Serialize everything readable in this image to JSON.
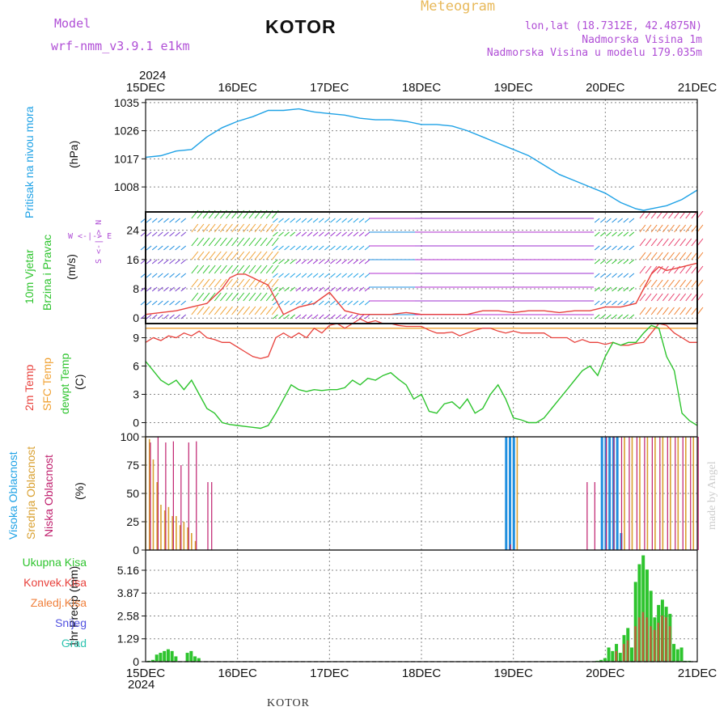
{
  "header": {
    "model_label": "Model",
    "model_name": "wrf-nmm_v3.9.1 e1km",
    "title": "KOTOR",
    "meteogram_label": "Meteogram",
    "lonlat": "lon,lat (18.7312E, 42.4875N)",
    "altitude": "Nadmorska Visina 1m",
    "model_altitude": "Nadmorska Visina u modelu 179.035m",
    "year": "2024",
    "footer_title": "KOTOR",
    "credit": "made by Angel"
  },
  "x_axis": {
    "ticks": [
      "15DEC",
      "16DEC",
      "17DEC",
      "18DEC",
      "19DEC",
      "20DEC",
      "21DEC"
    ]
  },
  "colors": {
    "pressure": "#1fa2e6",
    "temp2m": "#e8413c",
    "sfc_temp": "#f0a030",
    "dewpt": "#2ec42e",
    "visoka": "#1f8fe0",
    "srednja": "#d9a030",
    "niska": "#c0206e",
    "precip_total": "#2ec42e",
    "precip_conv": "#e8413c",
    "wind_speed": "#e8413c",
    "wind_axis_label": "#b04fd6"
  },
  "panels": {
    "pressure": {
      "label": "Pritisak na nivou mora",
      "unit": "(hPa)"
    },
    "wind": {
      "label1": "10m Vjetar",
      "label2": "Brzina i Pravac",
      "unit": "(m/s)",
      "compass": "W <-|-> E",
      "compass2": "S <-|-> N"
    },
    "temp": {
      "label1": "2m Temp",
      "label2": "SFC Temp",
      "label3": "dewpt Temp",
      "unit": "(C)"
    },
    "cloud": {
      "label1": "Visoka Oblacnost",
      "label2": "Srednja Oblacnost",
      "label3": "Niska Oblacnost",
      "unit": "(%)"
    },
    "precip": {
      "unit": "1hr Precip (mm)",
      "legend": [
        "Ukupna Kisa",
        "Konvek.Kisa",
        "Zaledj.Kisa",
        "Snijeg",
        "Grad"
      ]
    }
  },
  "chart_data": [
    {
      "type": "line",
      "name": "pressure",
      "ylabel": "Pritisak na nivou mora (hPa)",
      "yticks": [
        1008,
        1017,
        1026,
        1035
      ],
      "ylim": [
        1000,
        1036
      ],
      "xlim": [
        0,
        144
      ],
      "x": [
        0,
        4,
        8,
        12,
        16,
        20,
        24,
        28,
        32,
        36,
        40,
        44,
        48,
        52,
        56,
        60,
        64,
        68,
        72,
        76,
        80,
        84,
        88,
        92,
        96,
        100,
        104,
        108,
        112,
        116,
        120,
        124,
        128,
        130,
        132,
        136,
        140,
        144
      ],
      "series": [
        {
          "values": [
            1017.5,
            1018,
            1019.5,
            1020,
            1024,
            1027,
            1029,
            1030.5,
            1032.5,
            1032.5,
            1033,
            1032,
            1031.5,
            1031,
            1030,
            1029.5,
            1029.5,
            1029,
            1028,
            1028,
            1027.5,
            1026,
            1024,
            1022,
            1020,
            1018,
            1015,
            1012,
            1010,
            1008,
            1006,
            1003,
            1001,
            1000.5,
            1001,
            1002,
            1004,
            1007
          ]
        }
      ]
    },
    {
      "type": "line",
      "name": "wind",
      "ylabel": "10m Vjetar Brzina i Pravac (m/s)",
      "yticks": [
        0,
        8,
        16,
        24
      ],
      "ylim": [
        -1.5,
        29
      ],
      "xlim": [
        0,
        144
      ],
      "x": [
        0,
        4,
        8,
        12,
        16,
        20,
        22,
        24,
        26,
        28,
        30,
        32,
        34,
        36,
        40,
        44,
        48,
        52,
        56,
        60,
        64,
        68,
        72,
        76,
        80,
        84,
        88,
        92,
        96,
        100,
        104,
        108,
        112,
        116,
        120,
        124,
        128,
        130,
        132,
        134,
        136,
        140,
        144
      ],
      "series": [
        {
          "name": "speed",
          "values": [
            1,
            1.5,
            2,
            3,
            4,
            8,
            11,
            12,
            12,
            11,
            10,
            9,
            5,
            1,
            3,
            4,
            7,
            2,
            1,
            1,
            1,
            1.5,
            1,
            1,
            1,
            1,
            2,
            2,
            1.5,
            2,
            2,
            1.5,
            2,
            2,
            3,
            3,
            4,
            8,
            12,
            14,
            13,
            14,
            15
          ]
        }
      ]
    },
    {
      "type": "line",
      "name": "temperature",
      "ylabel": "Temp (C)",
      "yticks": [
        0,
        3,
        6,
        9
      ],
      "ylim": [
        -1.5,
        10.5
      ],
      "xlim": [
        0,
        144
      ],
      "x": [
        0,
        2,
        4,
        6,
        8,
        10,
        12,
        14,
        16,
        18,
        20,
        22,
        24,
        26,
        28,
        30,
        32,
        34,
        36,
        38,
        40,
        42,
        44,
        46,
        48,
        50,
        52,
        54,
        56,
        58,
        60,
        62,
        64,
        66,
        68,
        70,
        72,
        74,
        76,
        78,
        80,
        82,
        84,
        86,
        88,
        90,
        92,
        94,
        96,
        98,
        100,
        102,
        104,
        106,
        108,
        110,
        112,
        114,
        116,
        118,
        120,
        122,
        124,
        126,
        128,
        130,
        132,
        134,
        136,
        138,
        140,
        142,
        144
      ],
      "series": [
        {
          "name": "2m",
          "values": [
            8.5,
            9,
            8.7,
            9.2,
            9,
            9.5,
            9.2,
            9.7,
            9,
            8.8,
            8.5,
            8.5,
            8,
            7.5,
            7,
            6.8,
            7,
            9,
            9.5,
            9,
            9.5,
            9,
            10,
            9.5,
            10.3,
            10.5,
            10,
            10.5,
            11,
            10.6,
            10.8,
            10.5,
            10.5,
            10.3,
            10.2,
            10.2,
            10.2,
            9.8,
            9.5,
            9.5,
            9.6,
            9.2,
            9.5,
            9.8,
            10,
            10,
            9.7,
            9.5,
            9.7,
            9.5,
            9.5,
            9.5,
            9.5,
            9,
            9,
            9,
            8.5,
            8.8,
            8.5,
            8.5,
            8.3,
            8.5,
            8.2,
            8.2,
            8.4,
            8.5,
            9.5,
            10.5,
            10.3,
            9.5,
            9,
            8.5,
            8.5
          ]
        },
        {
          "name": "sfc",
          "values": [
            10,
            10,
            10,
            10,
            10,
            10,
            10,
            10,
            10,
            10,
            10,
            10,
            10,
            10,
            10,
            10,
            10,
            10,
            10,
            10,
            10,
            10,
            10,
            10,
            10,
            10,
            10,
            10,
            10,
            10,
            10,
            10,
            10,
            10,
            10,
            10,
            10,
            10,
            10,
            10,
            10,
            10,
            10,
            10,
            10,
            10,
            10,
            10,
            10,
            10,
            10,
            10,
            10,
            10,
            10,
            10,
            10,
            10,
            10,
            10,
            10,
            10,
            10,
            10,
            10,
            10,
            10,
            10,
            10,
            10,
            10,
            10,
            10
          ]
        },
        {
          "name": "dewpt",
          "values": [
            6.5,
            5.5,
            4.5,
            4,
            4.5,
            3.5,
            4.5,
            3,
            1.5,
            1,
            0,
            -0.2,
            -0.3,
            -0.4,
            -0.5,
            -0.6,
            -0.3,
            1,
            2.5,
            4,
            3.5,
            3.3,
            3.5,
            3.4,
            3.5,
            3.5,
            3.7,
            4.5,
            4,
            4.7,
            4.5,
            5,
            5.3,
            4.6,
            4,
            2.5,
            3,
            1.2,
            1,
            2,
            2.2,
            1.5,
            2.5,
            1,
            1.5,
            3,
            4,
            2.5,
            0.5,
            0.3,
            0,
            0,
            0.5,
            1.5,
            2.5,
            3.5,
            4.5,
            5.5,
            6,
            5,
            7,
            8.5,
            8.2,
            8.5,
            8.5,
            9.5,
            10.3,
            10,
            7,
            5.5,
            1,
            0.2,
            -0.3
          ]
        }
      ]
    },
    {
      "type": "bar",
      "name": "cloud cover",
      "ylabel": "Oblacnost (%)",
      "yticks": [
        0,
        25,
        50,
        75,
        100
      ],
      "ylim": [
        0,
        100
      ],
      "xlim": [
        0,
        144
      ],
      "series": [
        {
          "name": "srednja",
          "x": [
            0,
            1,
            2,
            3,
            4,
            5,
            6,
            7,
            8,
            9,
            10,
            11,
            12,
            13,
            14,
            94,
            95,
            96,
            97,
            120,
            121,
            122,
            123,
            125,
            127,
            129,
            131,
            133,
            135,
            137,
            139,
            141,
            143
          ],
          "values": [
            100,
            98,
            80,
            60,
            40,
            35,
            38,
            30,
            30,
            22,
            25,
            20,
            15,
            8,
            0,
            35,
            100,
            100,
            100,
            100,
            100,
            100,
            100,
            100,
            100,
            100,
            100,
            100,
            100,
            100,
            100,
            100,
            100
          ]
        },
        {
          "name": "visoka",
          "x": [
            90,
            91,
            92,
            93,
            94,
            95,
            96,
            118,
            119,
            120,
            121,
            122,
            123,
            124,
            125
          ],
          "values": [
            0,
            0,
            0,
            0,
            100,
            100,
            100,
            0,
            100,
            100,
            100,
            100,
            100,
            15,
            0
          ]
        },
        {
          "name": "niska",
          "x": [
            1,
            3,
            5,
            7,
            9,
            11,
            13,
            16,
            17,
            95,
            97,
            115,
            117,
            119,
            120,
            122,
            124,
            126,
            128,
            130,
            132,
            134,
            136,
            138,
            140,
            142,
            144
          ],
          "values": [
            95,
            100,
            95,
            96,
            75,
            95,
            96,
            60,
            60,
            5,
            0,
            60,
            60,
            0,
            100,
            100,
            100,
            100,
            100,
            100,
            100,
            100,
            100,
            100,
            100,
            100,
            100
          ]
        }
      ]
    },
    {
      "type": "bar",
      "name": "precipitation",
      "ylabel": "1hr Precip (mm)",
      "yticks": [
        0,
        1.29,
        2.58,
        3.87,
        5.16
      ],
      "ylim": [
        0,
        6.3
      ],
      "xlim": [
        0,
        144
      ],
      "series": [
        {
          "name": "Ukupna Kisa",
          "x": [
            1,
            2,
            3,
            4,
            5,
            6,
            7,
            8,
            11,
            12,
            13,
            14,
            118,
            119,
            120,
            121,
            122,
            123,
            124,
            125,
            126,
            127,
            128,
            129,
            130,
            131,
            132,
            133,
            134,
            135,
            136,
            137,
            138,
            139,
            140,
            141,
            142
          ],
          "values": [
            0.05,
            0.1,
            0.4,
            0.5,
            0.6,
            0.7,
            0.6,
            0.3,
            0.5,
            0.6,
            0.3,
            0.2,
            0.05,
            0.1,
            0.2,
            0.8,
            0.6,
            1,
            0.5,
            1.5,
            1.9,
            0.8,
            4.5,
            5.5,
            6,
            5.2,
            4,
            2.5,
            3.2,
            3.5,
            3.1,
            2.7,
            1,
            0.7,
            0.8,
            0.05,
            0.05
          ]
        },
        {
          "name": "Konvek.Kisa",
          "x": [
            123,
            125,
            126,
            128,
            129,
            130,
            131,
            132,
            133,
            134,
            135,
            136,
            137
          ],
          "values": [
            0.6,
            1,
            1.2,
            2,
            2.5,
            2.8,
            2.5,
            2,
            1.8,
            2.2,
            2.6,
            2.5,
            2
          ]
        }
      ]
    }
  ]
}
